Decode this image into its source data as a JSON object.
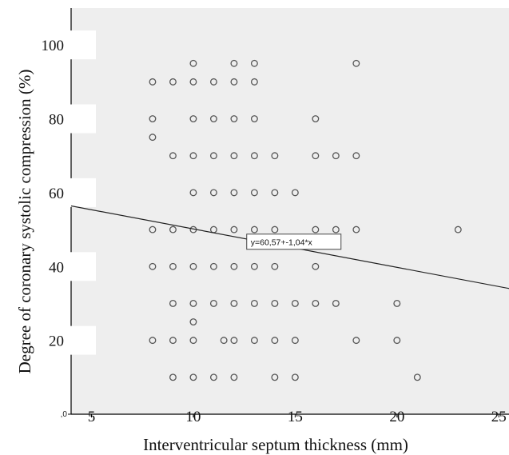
{
  "chart_data": {
    "type": "scatter",
    "title": "",
    "xlabel": "Interventricular septum thickness (mm)",
    "ylabel": "Degree of coronary systolic compression (%)",
    "xlim": [
      4,
      25.5
    ],
    "ylim": [
      0,
      110
    ],
    "x_ticks": [
      5,
      10,
      15,
      20,
      25
    ],
    "x_tick_labels": [
      "5",
      "10",
      "15",
      "20",
      "25"
    ],
    "y_ticks": [
      0,
      20,
      40,
      60,
      80,
      100
    ],
    "y_tick_labels": [
      ",0",
      "20",
      "40",
      "60",
      "80",
      "100"
    ],
    "grid": false,
    "plot_background": "#eeeeee",
    "point_color": "#555555",
    "line_color": "#222222",
    "fit_line": {
      "intercept": 60.57,
      "slope": -1.04,
      "label": "y=60,57+-1,04*x"
    },
    "points": [
      [
        10,
        95
      ],
      [
        12,
        95
      ],
      [
        13,
        95
      ],
      [
        18,
        95
      ],
      [
        8,
        90
      ],
      [
        9,
        90
      ],
      [
        10,
        90
      ],
      [
        11,
        90
      ],
      [
        12,
        90
      ],
      [
        13,
        90
      ],
      [
        8,
        80
      ],
      [
        10,
        80
      ],
      [
        11,
        80
      ],
      [
        12,
        80
      ],
      [
        13,
        80
      ],
      [
        16,
        80
      ],
      [
        8,
        75
      ],
      [
        9,
        70
      ],
      [
        10,
        70
      ],
      [
        11,
        70
      ],
      [
        12,
        70
      ],
      [
        13,
        70
      ],
      [
        14,
        70
      ],
      [
        16,
        70
      ],
      [
        17,
        70
      ],
      [
        18,
        70
      ],
      [
        10,
        60
      ],
      [
        11,
        60
      ],
      [
        12,
        60
      ],
      [
        13,
        60
      ],
      [
        14,
        60
      ],
      [
        15,
        60
      ],
      [
        8,
        50
      ],
      [
        9,
        50
      ],
      [
        10,
        50
      ],
      [
        11,
        50
      ],
      [
        12,
        50
      ],
      [
        13,
        50
      ],
      [
        14,
        50
      ],
      [
        16,
        50
      ],
      [
        17,
        50
      ],
      [
        18,
        50
      ],
      [
        23,
        50
      ],
      [
        8,
        40
      ],
      [
        9,
        40
      ],
      [
        10,
        40
      ],
      [
        11,
        40
      ],
      [
        12,
        40
      ],
      [
        13,
        40
      ],
      [
        14,
        40
      ],
      [
        16,
        40
      ],
      [
        9,
        30
      ],
      [
        10,
        30
      ],
      [
        11,
        30
      ],
      [
        12,
        30
      ],
      [
        13,
        30
      ],
      [
        14,
        30
      ],
      [
        15,
        30
      ],
      [
        16,
        30
      ],
      [
        17,
        30
      ],
      [
        20,
        30
      ],
      [
        10,
        25
      ],
      [
        8,
        20
      ],
      [
        9,
        20
      ],
      [
        10,
        20
      ],
      [
        11.5,
        20
      ],
      [
        12,
        20
      ],
      [
        13,
        20
      ],
      [
        14,
        20
      ],
      [
        15,
        20
      ],
      [
        18,
        20
      ],
      [
        20,
        20
      ],
      [
        9,
        10
      ],
      [
        10,
        10
      ],
      [
        11,
        10
      ],
      [
        12,
        10
      ],
      [
        14,
        10
      ],
      [
        15,
        10
      ],
      [
        21,
        10
      ]
    ]
  }
}
